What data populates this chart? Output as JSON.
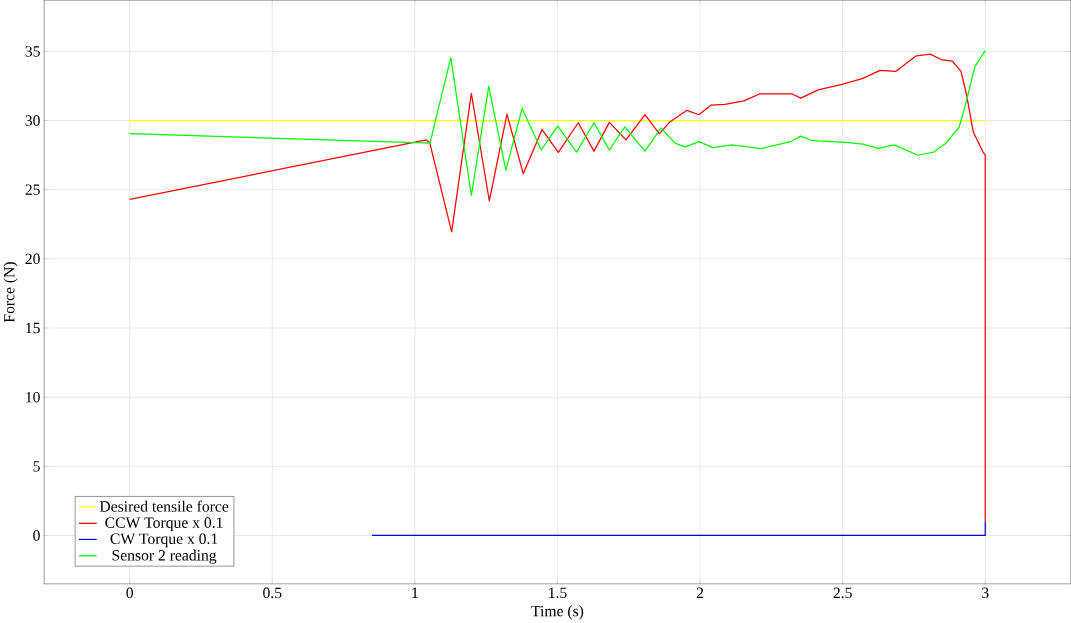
{
  "chart_data": {
    "type": "line",
    "xlabel": "Time (s)",
    "ylabel": "Force (N)",
    "xlim": [
      -0.3,
      3.3
    ],
    "ylim": [
      -3.5,
      38.7
    ],
    "xticks": [
      0,
      0.5,
      1,
      1.5,
      2,
      2.5,
      3
    ],
    "yticks": [
      0,
      5,
      10,
      15,
      20,
      25,
      30,
      35
    ],
    "grid": true,
    "legend": "bottom left",
    "marker": "none",
    "line_style": "solid",
    "series": [
      {
        "name": "Desired tensile force",
        "color": "#ffff00",
        "x": [
          0,
          3
        ],
        "values": [
          30,
          30
        ]
      },
      {
        "name": "CCW Torque x 0.1",
        "color": "#ff0000",
        "x": [
          0,
          1.04,
          1.052,
          1.129,
          1.198,
          1.261,
          1.323,
          1.38,
          1.446,
          1.503,
          1.573,
          1.628,
          1.682,
          1.74,
          1.807,
          1.857,
          1.894,
          1.954,
          1.996,
          2.039,
          2.087,
          2.154,
          2.208,
          2.323,
          2.353,
          2.414,
          2.498,
          2.571,
          2.631,
          2.686,
          2.758,
          2.807,
          2.849,
          2.885,
          2.915,
          2.934,
          2.958,
          2.994,
          3.0,
          3.0
        ],
        "values": [
          24.3,
          28.6,
          28.4,
          21.95,
          31.97,
          24.2,
          30.47,
          26.16,
          29.35,
          27.7,
          29.84,
          27.79,
          29.87,
          28.6,
          30.42,
          29.04,
          29.9,
          30.74,
          30.42,
          31.12,
          31.17,
          31.42,
          31.92,
          31.92,
          31.62,
          32.22,
          32.62,
          33.05,
          33.63,
          33.55,
          34.68,
          34.8,
          34.38,
          34.3,
          33.55,
          31.92,
          29.17,
          27.66,
          27.5,
          1.0
        ]
      },
      {
        "name": "CW Torque x 0.1",
        "color": "#0000ff",
        "x": [
          0.85,
          3.0,
          3.0
        ],
        "values": [
          0,
          0,
          1.0
        ]
      },
      {
        "name": "Sensor 2 reading",
        "color": "#00ff00",
        "x": [
          0,
          1.053,
          1.126,
          1.198,
          1.259,
          1.319,
          1.376,
          1.443,
          1.501,
          1.567,
          1.628,
          1.682,
          1.736,
          1.807,
          1.863,
          1.912,
          1.948,
          1.996,
          2.045,
          2.111,
          2.214,
          2.317,
          2.353,
          2.395,
          2.51,
          2.571,
          2.625,
          2.68,
          2.764,
          2.819,
          2.861,
          2.909,
          2.934,
          2.964,
          3.0
        ],
        "values": [
          29.05,
          28.37,
          34.55,
          24.58,
          32.47,
          26.42,
          30.87,
          27.87,
          29.59,
          27.72,
          29.84,
          27.87,
          29.54,
          27.79,
          29.47,
          28.37,
          28.09,
          28.47,
          28.04,
          28.24,
          27.97,
          28.47,
          28.87,
          28.54,
          28.42,
          28.29,
          27.99,
          28.24,
          27.49,
          27.72,
          28.34,
          29.54,
          31.42,
          33.92,
          35.05
        ]
      }
    ]
  }
}
